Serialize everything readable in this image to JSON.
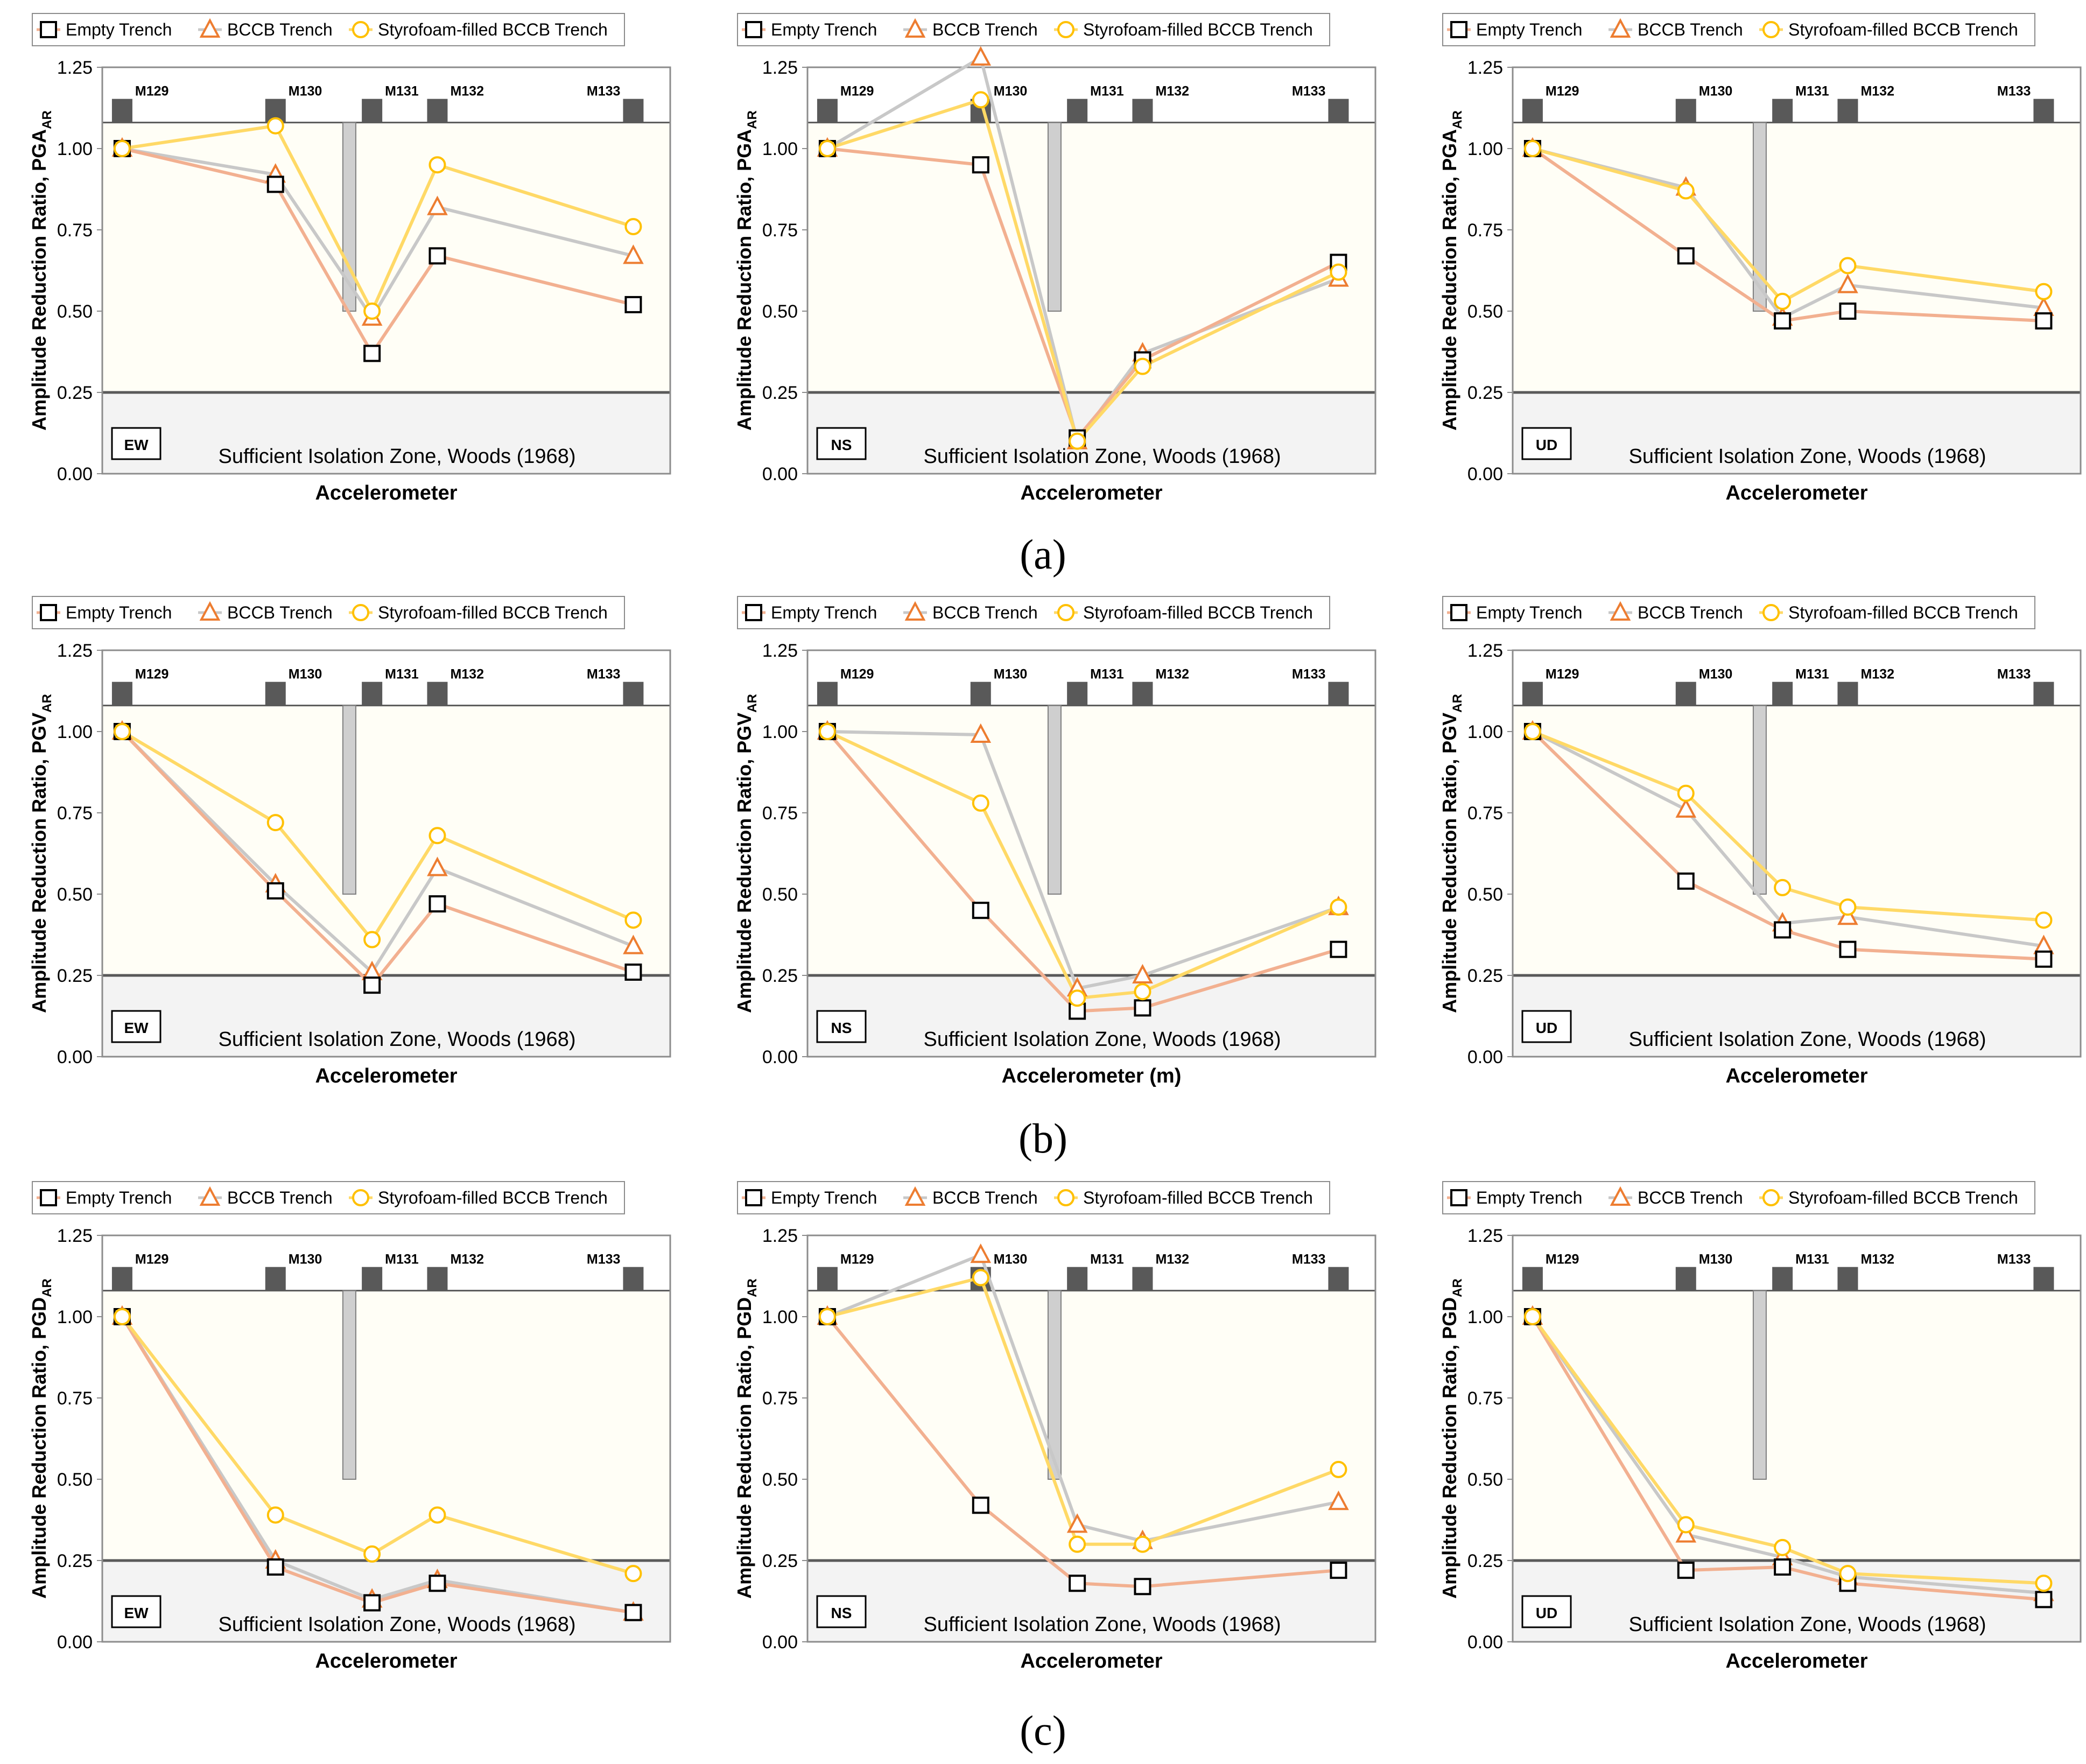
{
  "figure": {
    "row_captions": [
      "(a)",
      "(b)",
      "(c)"
    ],
    "legend_labels": [
      "Empty Trench",
      "BCCB Trench",
      "Styrofoam-filled BCCB Trench"
    ],
    "zone_label": "Sufficient Isolation Zone, Woods (1968)",
    "sensor_labels": [
      "M129",
      "M130",
      "M131",
      "M132",
      "M133"
    ],
    "colors": {
      "empty": "#000000",
      "empty_line": "#f2b090",
      "bccb": "#ed7d31",
      "bccb_line": "#c8c8c8",
      "styro": "#ffc000",
      "styro_line": "#ffd966",
      "plot_bg": "#fffef6",
      "zone_bg": "#f3f3f3",
      "sensor": "#595959",
      "trench": "#cfcfcf"
    }
  },
  "chart_data": [
    {
      "type": "line",
      "panel": "a-EW",
      "ylabel": "Amplitude Reduction Ratio, PGA",
      "ylabel_sub": "AR",
      "xlabel": "Accelerometer",
      "direction": "EW",
      "ylim": [
        0,
        1.25
      ],
      "yticks": [
        "0.00",
        "0.25",
        "0.50",
        "0.75",
        "1.00",
        "1.25"
      ],
      "series": [
        {
          "name": "Empty Trench",
          "values": [
            1.0,
            0.89,
            0.37,
            0.67,
            0.52
          ]
        },
        {
          "name": "BCCB Trench",
          "values": [
            1.0,
            0.92,
            0.48,
            0.82,
            0.67
          ]
        },
        {
          "name": "Styrofoam-filled BCCB Trench",
          "values": [
            1.0,
            1.07,
            0.5,
            0.95,
            0.76
          ]
        }
      ]
    },
    {
      "type": "line",
      "panel": "a-NS",
      "ylabel": "Amplitude Reduction Ratio, PGA",
      "ylabel_sub": "AR",
      "xlabel": "Accelerometer",
      "direction": "NS",
      "ylim": [
        0,
        1.25
      ],
      "yticks": [
        "0.00",
        "0.25",
        "0.50",
        "0.75",
        "1.00",
        "1.25"
      ],
      "series": [
        {
          "name": "Empty Trench",
          "values": [
            1.0,
            0.95,
            0.11,
            0.35,
            0.65
          ]
        },
        {
          "name": "BCCB Trench",
          "values": [
            1.0,
            1.28,
            0.1,
            0.37,
            0.6
          ]
        },
        {
          "name": "Styrofoam-filled BCCB Trench",
          "values": [
            1.0,
            1.15,
            0.1,
            0.33,
            0.62
          ]
        }
      ]
    },
    {
      "type": "line",
      "panel": "a-UD",
      "ylabel": "Amplitude Reduction Ratio, PGA",
      "ylabel_sub": "AR",
      "xlabel": "Accelerometer",
      "direction": "UD",
      "ylim": [
        0,
        1.25
      ],
      "yticks": [
        "0.00",
        "0.25",
        "0.50",
        "0.75",
        "1.00",
        "1.25"
      ],
      "series": [
        {
          "name": "Empty Trench",
          "values": [
            1.0,
            0.67,
            0.47,
            0.5,
            0.47
          ]
        },
        {
          "name": "BCCB Trench",
          "values": [
            1.0,
            0.88,
            0.48,
            0.58,
            0.51
          ]
        },
        {
          "name": "Styrofoam-filled BCCB Trench",
          "values": [
            1.0,
            0.87,
            0.53,
            0.64,
            0.56
          ]
        }
      ]
    },
    {
      "type": "line",
      "panel": "b-EW",
      "ylabel": "Amplitude Reduction Ratio, PGV",
      "ylabel_sub": "AR",
      "xlabel": "Accelerometer",
      "direction": "EW",
      "ylim": [
        0,
        1.25
      ],
      "yticks": [
        "0.00",
        "0.25",
        "0.50",
        "0.75",
        "1.00",
        "1.25"
      ],
      "series": [
        {
          "name": "Empty Trench",
          "values": [
            1.0,
            0.51,
            0.22,
            0.47,
            0.26
          ]
        },
        {
          "name": "BCCB Trench",
          "values": [
            1.0,
            0.53,
            0.26,
            0.58,
            0.34
          ]
        },
        {
          "name": "Styrofoam-filled BCCB Trench",
          "values": [
            1.0,
            0.72,
            0.36,
            0.68,
            0.42
          ]
        }
      ]
    },
    {
      "type": "line",
      "panel": "b-NS",
      "ylabel": "Amplitude Reduction Ratio, PGV",
      "ylabel_sub": "AR",
      "xlabel": "Accelerometer (m)",
      "direction": "NS",
      "ylim": [
        0,
        1.25
      ],
      "yticks": [
        "0.00",
        "0.25",
        "0.50",
        "0.75",
        "1.00",
        "1.25"
      ],
      "series": [
        {
          "name": "Empty Trench",
          "values": [
            1.0,
            0.45,
            0.14,
            0.15,
            0.33
          ]
        },
        {
          "name": "BCCB Trench",
          "values": [
            1.0,
            0.99,
            0.21,
            0.25,
            0.46
          ]
        },
        {
          "name": "Styrofoam-filled BCCB Trench",
          "values": [
            1.0,
            0.78,
            0.18,
            0.2,
            0.46
          ]
        }
      ]
    },
    {
      "type": "line",
      "panel": "b-UD",
      "ylabel": "Amplitude Reduction Ratio, PGV",
      "ylabel_sub": "AR",
      "xlabel": "Accelerometer",
      "direction": "UD",
      "ylim": [
        0,
        1.25
      ],
      "yticks": [
        "0.00",
        "0.25",
        "0.50",
        "0.75",
        "1.00",
        "1.25"
      ],
      "series": [
        {
          "name": "Empty Trench",
          "values": [
            1.0,
            0.54,
            0.39,
            0.33,
            0.3
          ]
        },
        {
          "name": "BCCB Trench",
          "values": [
            1.0,
            0.76,
            0.41,
            0.43,
            0.34
          ]
        },
        {
          "name": "Styrofoam-filled BCCB Trench",
          "values": [
            1.0,
            0.81,
            0.52,
            0.46,
            0.42
          ]
        }
      ]
    },
    {
      "type": "line",
      "panel": "c-EW",
      "ylabel": "Amplitude Reduction Ratio, PGD",
      "ylabel_sub": "AR",
      "xlabel": "Accelerometer",
      "direction": "EW",
      "ylim": [
        0,
        1.25
      ],
      "yticks": [
        "0.00",
        "0.25",
        "0.50",
        "0.75",
        "1.00",
        "1.25"
      ],
      "series": [
        {
          "name": "Empty Trench",
          "values": [
            1.0,
            0.23,
            0.12,
            0.18,
            0.09
          ]
        },
        {
          "name": "BCCB Trench",
          "values": [
            1.0,
            0.25,
            0.13,
            0.19,
            0.09
          ]
        },
        {
          "name": "Styrofoam-filled BCCB Trench",
          "values": [
            1.0,
            0.39,
            0.27,
            0.39,
            0.21
          ]
        }
      ]
    },
    {
      "type": "line",
      "panel": "c-NS",
      "ylabel": "Amplitude Reduction Ratio, PGD",
      "ylabel_sub": "AR",
      "xlabel": "Accelerometer",
      "direction": "NS",
      "ylim": [
        0,
        1.25
      ],
      "yticks": [
        "0.00",
        "0.25",
        "0.50",
        "0.75",
        "1.00",
        "1.25"
      ],
      "series": [
        {
          "name": "Empty Trench",
          "values": [
            1.0,
            0.42,
            0.18,
            0.17,
            0.22
          ]
        },
        {
          "name": "BCCB Trench",
          "values": [
            1.0,
            1.19,
            0.36,
            0.31,
            0.43
          ]
        },
        {
          "name": "Styrofoam-filled BCCB Trench",
          "values": [
            1.0,
            1.12,
            0.3,
            0.3,
            0.53
          ]
        }
      ]
    },
    {
      "type": "line",
      "panel": "c-UD",
      "ylabel": "Amplitude Reduction Ratio, PGD",
      "ylabel_sub": "AR",
      "xlabel": "Accelerometer",
      "direction": "UD",
      "ylim": [
        0,
        1.25
      ],
      "yticks": [
        "0.00",
        "0.25",
        "0.50",
        "0.75",
        "1.00",
        "1.25"
      ],
      "series": [
        {
          "name": "Empty Trench",
          "values": [
            1.0,
            0.22,
            0.23,
            0.18,
            0.13
          ]
        },
        {
          "name": "BCCB Trench",
          "values": [
            1.0,
            0.33,
            0.26,
            0.2,
            0.15
          ]
        },
        {
          "name": "Styrofoam-filled BCCB Trench",
          "values": [
            1.0,
            0.36,
            0.29,
            0.21,
            0.18
          ]
        }
      ]
    }
  ]
}
